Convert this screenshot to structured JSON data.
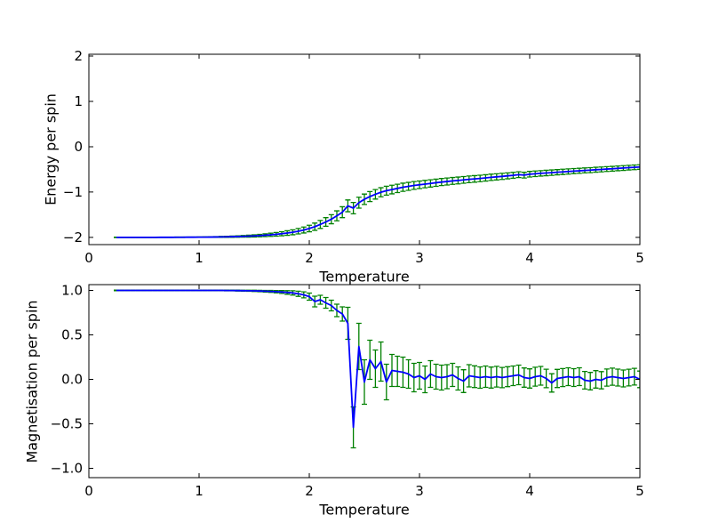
{
  "figure_title": "",
  "chart_data": [
    {
      "type": "line",
      "series_name": "energy-vs-temperature",
      "xlabel": "Temperature",
      "ylabel": "Energy per spin",
      "xlim": [
        0,
        5
      ],
      "ylim": [
        -2.16,
        2.04
      ],
      "xtick_values": [
        0,
        1,
        2,
        3,
        4,
        5
      ],
      "xtick_labels": [
        "0",
        "1",
        "2",
        "3",
        "4",
        "5"
      ],
      "ytick_values": [
        2,
        1,
        0,
        -1,
        -2
      ],
      "ytick_labels": [
        "2",
        "1",
        "0",
        "−1",
        "−2"
      ],
      "grid": false,
      "legend": null,
      "line_color": "#0000ff",
      "errorbar_color": "#008000",
      "x": [
        0.25,
        0.3,
        0.35,
        0.4,
        0.45,
        0.5,
        0.55,
        0.6,
        0.65,
        0.7,
        0.75,
        0.8,
        0.85,
        0.9,
        0.95,
        1.0,
        1.05,
        1.1,
        1.15,
        1.2,
        1.25,
        1.3,
        1.35,
        1.4,
        1.45,
        1.5,
        1.55,
        1.6,
        1.65,
        1.7,
        1.75,
        1.8,
        1.85,
        1.9,
        1.95,
        2.0,
        2.05,
        2.1,
        2.15,
        2.2,
        2.25,
        2.3,
        2.35,
        2.4,
        2.45,
        2.5,
        2.55,
        2.6,
        2.65,
        2.7,
        2.75,
        2.8,
        2.85,
        2.9,
        2.95,
        3.0,
        3.05,
        3.1,
        3.15,
        3.2,
        3.25,
        3.3,
        3.35,
        3.4,
        3.45,
        3.5,
        3.55,
        3.6,
        3.65,
        3.7,
        3.75,
        3.8,
        3.85,
        3.9,
        3.95,
        4.0,
        4.05,
        4.1,
        4.15,
        4.2,
        4.25,
        4.3,
        4.35,
        4.4,
        4.45,
        4.5,
        4.55,
        4.6,
        4.65,
        4.7,
        4.75,
        4.8,
        4.85,
        4.9,
        4.95,
        5.0
      ],
      "y": [
        -2.0,
        -2.0,
        -2.0,
        -2.0,
        -2.0,
        -2.0,
        -2.0,
        -2.0,
        -1.999,
        -1.999,
        -1.999,
        -1.998,
        -1.998,
        -1.997,
        -1.997,
        -1.996,
        -1.995,
        -1.994,
        -1.992,
        -1.99,
        -1.988,
        -1.985,
        -1.982,
        -1.978,
        -1.973,
        -1.968,
        -1.961,
        -1.953,
        -1.944,
        -1.933,
        -1.92,
        -1.905,
        -1.888,
        -1.865,
        -1.838,
        -1.805,
        -1.765,
        -1.715,
        -1.66,
        -1.6,
        -1.525,
        -1.445,
        -1.305,
        -1.355,
        -1.235,
        -1.16,
        -1.1,
        -1.05,
        -1.005,
        -0.97,
        -0.945,
        -0.92,
        -0.895,
        -0.875,
        -0.855,
        -0.84,
        -0.825,
        -0.81,
        -0.795,
        -0.78,
        -0.768,
        -0.755,
        -0.745,
        -0.732,
        -0.72,
        -0.71,
        -0.7,
        -0.688,
        -0.675,
        -0.665,
        -0.655,
        -0.643,
        -0.632,
        -0.617,
        -0.627,
        -0.607,
        -0.597,
        -0.588,
        -0.58,
        -0.572,
        -0.563,
        -0.555,
        -0.547,
        -0.538,
        -0.532,
        -0.523,
        -0.517,
        -0.508,
        -0.502,
        -0.493,
        -0.487,
        -0.478,
        -0.47,
        -0.462,
        -0.455,
        -0.448
      ],
      "yerr": [
        0.004,
        0.004,
        0.004,
        0.004,
        0.004,
        0.004,
        0.004,
        0.004,
        0.004,
        0.004,
        0.004,
        0.004,
        0.004,
        0.004,
        0.004,
        0.004,
        0.006,
        0.007,
        0.008,
        0.01,
        0.012,
        0.014,
        0.016,
        0.018,
        0.021,
        0.024,
        0.027,
        0.031,
        0.035,
        0.04,
        0.045,
        0.05,
        0.055,
        0.06,
        0.066,
        0.072,
        0.08,
        0.088,
        0.095,
        0.1,
        0.11,
        0.12,
        0.13,
        0.125,
        0.12,
        0.115,
        0.11,
        0.105,
        0.1,
        0.098,
        0.095,
        0.092,
        0.09,
        0.088,
        0.086,
        0.084,
        0.082,
        0.08,
        0.079,
        0.078,
        0.077,
        0.076,
        0.075,
        0.074,
        0.073,
        0.072,
        0.071,
        0.07,
        0.069,
        0.068,
        0.067,
        0.066,
        0.065,
        0.064,
        0.063,
        0.062,
        0.061,
        0.06,
        0.06,
        0.059,
        0.058,
        0.058,
        0.057,
        0.056,
        0.056,
        0.055,
        0.055,
        0.054,
        0.054,
        0.053,
        0.053,
        0.052,
        0.052,
        0.051,
        0.051,
        0.05
      ]
    },
    {
      "type": "line",
      "series_name": "magnetisation-vs-temperature",
      "xlabel": "Temperature",
      "ylabel": "Magnetisation per spin",
      "xlim": [
        0,
        5
      ],
      "ylim": [
        -1.105,
        1.065
      ],
      "xtick_values": [
        0,
        1,
        2,
        3,
        4,
        5
      ],
      "xtick_labels": [
        "0",
        "1",
        "2",
        "3",
        "4",
        "5"
      ],
      "ytick_values": [
        1.0,
        0.5,
        0.0,
        -0.5,
        -1.0
      ],
      "ytick_labels": [
        "1.0",
        "0.5",
        "0.0",
        "−0.5",
        "−1.0"
      ],
      "grid": false,
      "legend": null,
      "line_color": "#0000ff",
      "errorbar_color": "#008000",
      "x": [
        0.25,
        0.3,
        0.35,
        0.4,
        0.45,
        0.5,
        0.55,
        0.6,
        0.65,
        0.7,
        0.75,
        0.8,
        0.85,
        0.9,
        0.95,
        1.0,
        1.05,
        1.1,
        1.15,
        1.2,
        1.25,
        1.3,
        1.35,
        1.4,
        1.45,
        1.5,
        1.55,
        1.6,
        1.65,
        1.7,
        1.75,
        1.8,
        1.85,
        1.9,
        1.95,
        2.0,
        2.05,
        2.1,
        2.15,
        2.2,
        2.25,
        2.3,
        2.35,
        2.4,
        2.45,
        2.5,
        2.55,
        2.6,
        2.65,
        2.7,
        2.75,
        2.8,
        2.85,
        2.9,
        2.95,
        3.0,
        3.05,
        3.1,
        3.15,
        3.2,
        3.25,
        3.3,
        3.35,
        3.4,
        3.45,
        3.5,
        3.55,
        3.6,
        3.65,
        3.7,
        3.75,
        3.8,
        3.85,
        3.9,
        3.95,
        4.0,
        4.05,
        4.1,
        4.15,
        4.2,
        4.25,
        4.3,
        4.35,
        4.4,
        4.45,
        4.5,
        4.55,
        4.6,
        4.65,
        4.7,
        4.75,
        4.8,
        4.85,
        4.9,
        4.95,
        5.0
      ],
      "y": [
        1.0,
        1.0,
        1.0,
        1.0,
        1.0,
        1.0,
        1.0,
        1.0,
        1.0,
        1.0,
        1.0,
        1.0,
        1.0,
        1.0,
        1.0,
        1.0,
        1.0,
        1.0,
        1.0,
        1.0,
        0.999,
        0.999,
        0.998,
        0.997,
        0.996,
        0.995,
        0.993,
        0.991,
        0.989,
        0.986,
        0.982,
        0.977,
        0.972,
        0.962,
        0.95,
        0.93,
        0.875,
        0.895,
        0.86,
        0.83,
        0.775,
        0.735,
        0.63,
        -0.54,
        0.37,
        -0.03,
        0.22,
        0.12,
        0.2,
        -0.03,
        0.1,
        0.09,
        0.08,
        0.06,
        0.02,
        0.04,
        0.0,
        0.06,
        0.03,
        0.02,
        0.03,
        0.05,
        0.01,
        -0.02,
        0.04,
        0.03,
        0.02,
        0.03,
        0.02,
        0.03,
        0.02,
        0.03,
        0.04,
        0.05,
        0.02,
        0.01,
        0.03,
        0.04,
        0.01,
        -0.04,
        0.01,
        0.02,
        0.03,
        0.02,
        0.03,
        -0.01,
        -0.02,
        0.0,
        -0.01,
        0.02,
        0.03,
        0.02,
        0.01,
        0.02,
        0.03,
        0.0
      ],
      "yerr": [
        0.003,
        0.003,
        0.003,
        0.003,
        0.003,
        0.003,
        0.003,
        0.003,
        0.003,
        0.003,
        0.003,
        0.003,
        0.003,
        0.003,
        0.003,
        0.003,
        0.003,
        0.003,
        0.003,
        0.003,
        0.004,
        0.004,
        0.005,
        0.005,
        0.006,
        0.007,
        0.008,
        0.009,
        0.011,
        0.013,
        0.016,
        0.02,
        0.024,
        0.029,
        0.034,
        0.04,
        0.06,
        0.05,
        0.06,
        0.06,
        0.07,
        0.08,
        0.18,
        0.23,
        0.26,
        0.25,
        0.22,
        0.21,
        0.22,
        0.2,
        0.18,
        0.17,
        0.17,
        0.16,
        0.16,
        0.15,
        0.15,
        0.15,
        0.14,
        0.14,
        0.135,
        0.13,
        0.13,
        0.128,
        0.125,
        0.122,
        0.12,
        0.12,
        0.118,
        0.116,
        0.114,
        0.112,
        0.11,
        0.11,
        0.108,
        0.108,
        0.106,
        0.105,
        0.104,
        0.103,
        0.102,
        0.101,
        0.1,
        0.1,
        0.1,
        0.099,
        0.098,
        0.098,
        0.097,
        0.096,
        0.096,
        0.095,
        0.095,
        0.094,
        0.094,
        0.093
      ]
    }
  ]
}
